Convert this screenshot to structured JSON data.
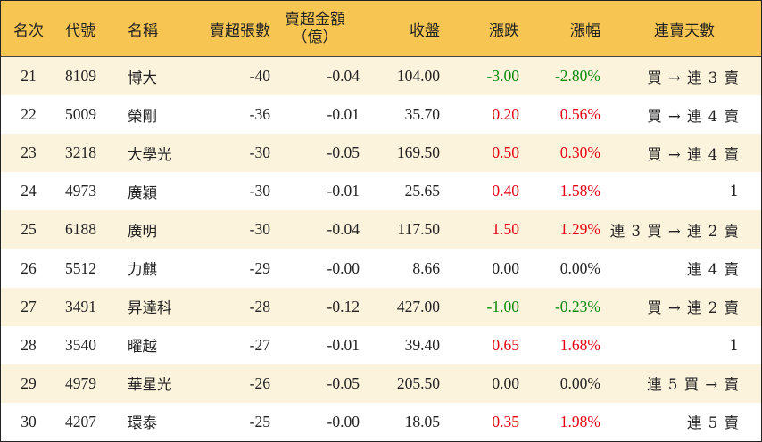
{
  "headers": {
    "rank": "名次",
    "code": "代號",
    "name": "名稱",
    "sheets": "賣超張數",
    "amount_line1": "賣超金額",
    "amount_line2": "（億）",
    "close": "收盤",
    "change": "漲跌",
    "pct": "漲幅",
    "days": "連賣天數"
  },
  "colors": {
    "header_bg": "#f7c652",
    "odd_row_bg": "#fcf3dd",
    "up": "#e60012",
    "down": "#0a8a0a"
  },
  "rows": [
    {
      "rank": "21",
      "code": "8109",
      "name": "博大",
      "sheets": "-40",
      "amount": "-0.04",
      "close": "104.00",
      "change": "-3.00",
      "pct": "-2.80%",
      "trend": "down",
      "days": "買 → 連 3 賣"
    },
    {
      "rank": "22",
      "code": "5009",
      "name": "榮剛",
      "sheets": "-36",
      "amount": "-0.01",
      "close": "35.70",
      "change": "0.20",
      "pct": "0.56%",
      "trend": "up",
      "days": "買 → 連 4 賣"
    },
    {
      "rank": "23",
      "code": "3218",
      "name": "大學光",
      "sheets": "-30",
      "amount": "-0.05",
      "close": "169.50",
      "change": "0.50",
      "pct": "0.30%",
      "trend": "up",
      "days": "買 → 連 4 賣"
    },
    {
      "rank": "24",
      "code": "4973",
      "name": "廣穎",
      "sheets": "-30",
      "amount": "-0.01",
      "close": "25.65",
      "change": "0.40",
      "pct": "1.58%",
      "trend": "up",
      "days": "1"
    },
    {
      "rank": "25",
      "code": "6188",
      "name": "廣明",
      "sheets": "-30",
      "amount": "-0.04",
      "close": "117.50",
      "change": "1.50",
      "pct": "1.29%",
      "trend": "up",
      "days": "連 3 買 → 連 2 賣"
    },
    {
      "rank": "26",
      "code": "5512",
      "name": "力麒",
      "sheets": "-29",
      "amount": "-0.00",
      "close": "8.66",
      "change": "0.00",
      "pct": "0.00%",
      "trend": "flat",
      "days": "連 4 賣"
    },
    {
      "rank": "27",
      "code": "3491",
      "name": "昇達科",
      "sheets": "-28",
      "amount": "-0.12",
      "close": "427.00",
      "change": "-1.00",
      "pct": "-0.23%",
      "trend": "down",
      "days": "買 → 連 2 賣"
    },
    {
      "rank": "28",
      "code": "3540",
      "name": "曜越",
      "sheets": "-27",
      "amount": "-0.01",
      "close": "39.40",
      "change": "0.65",
      "pct": "1.68%",
      "trend": "up",
      "days": "1"
    },
    {
      "rank": "29",
      "code": "4979",
      "name": "華星光",
      "sheets": "-26",
      "amount": "-0.05",
      "close": "205.50",
      "change": "0.00",
      "pct": "0.00%",
      "trend": "flat",
      "days": "連 5 買 → 賣"
    },
    {
      "rank": "30",
      "code": "4207",
      "name": "環泰",
      "sheets": "-25",
      "amount": "-0.00",
      "close": "18.05",
      "change": "0.35",
      "pct": "1.98%",
      "trend": "up",
      "days": "連 5 賣"
    }
  ]
}
